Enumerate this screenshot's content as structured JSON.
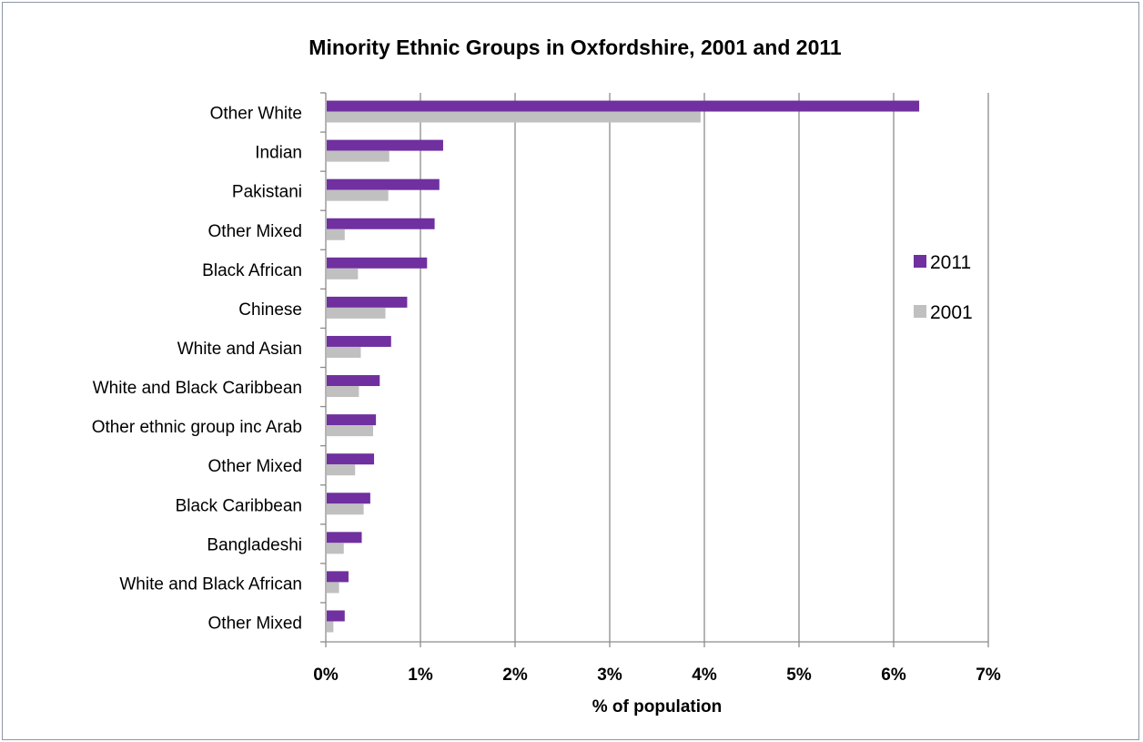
{
  "chart_data": {
    "type": "bar",
    "orientation": "horizontal",
    "title": "Minority Ethnic Groups in Oxfordshire, 2001 and 2011",
    "xlabel": "% of population",
    "ylabel": "",
    "xlim": [
      0,
      7
    ],
    "x_ticks": [
      "0%",
      "1%",
      "2%",
      "3%",
      "4%",
      "5%",
      "6%",
      "7%"
    ],
    "grid": "vertical gridlines",
    "legend_position": "right",
    "categories": [
      "Other White",
      "Indian",
      "Pakistani",
      "Other Mixed",
      "Black African",
      "Chinese",
      "White and Asian",
      "White and Black Caribbean",
      "Other ethnic group inc Arab",
      "Other Mixed",
      "Black Caribbean",
      "Bangladeshi",
      "White and Black African",
      "Other Mixed"
    ],
    "series": [
      {
        "name": "2011",
        "color": "#7030a0",
        "values": [
          6.27,
          1.24,
          1.2,
          1.15,
          1.07,
          0.86,
          0.69,
          0.57,
          0.53,
          0.51,
          0.47,
          0.38,
          0.24,
          0.2
        ]
      },
      {
        "name": "2001",
        "color": "#c0c0c0",
        "values": [
          3.96,
          0.67,
          0.66,
          0.2,
          0.34,
          0.63,
          0.37,
          0.35,
          0.5,
          0.31,
          0.4,
          0.19,
          0.14,
          0.08
        ]
      }
    ]
  }
}
